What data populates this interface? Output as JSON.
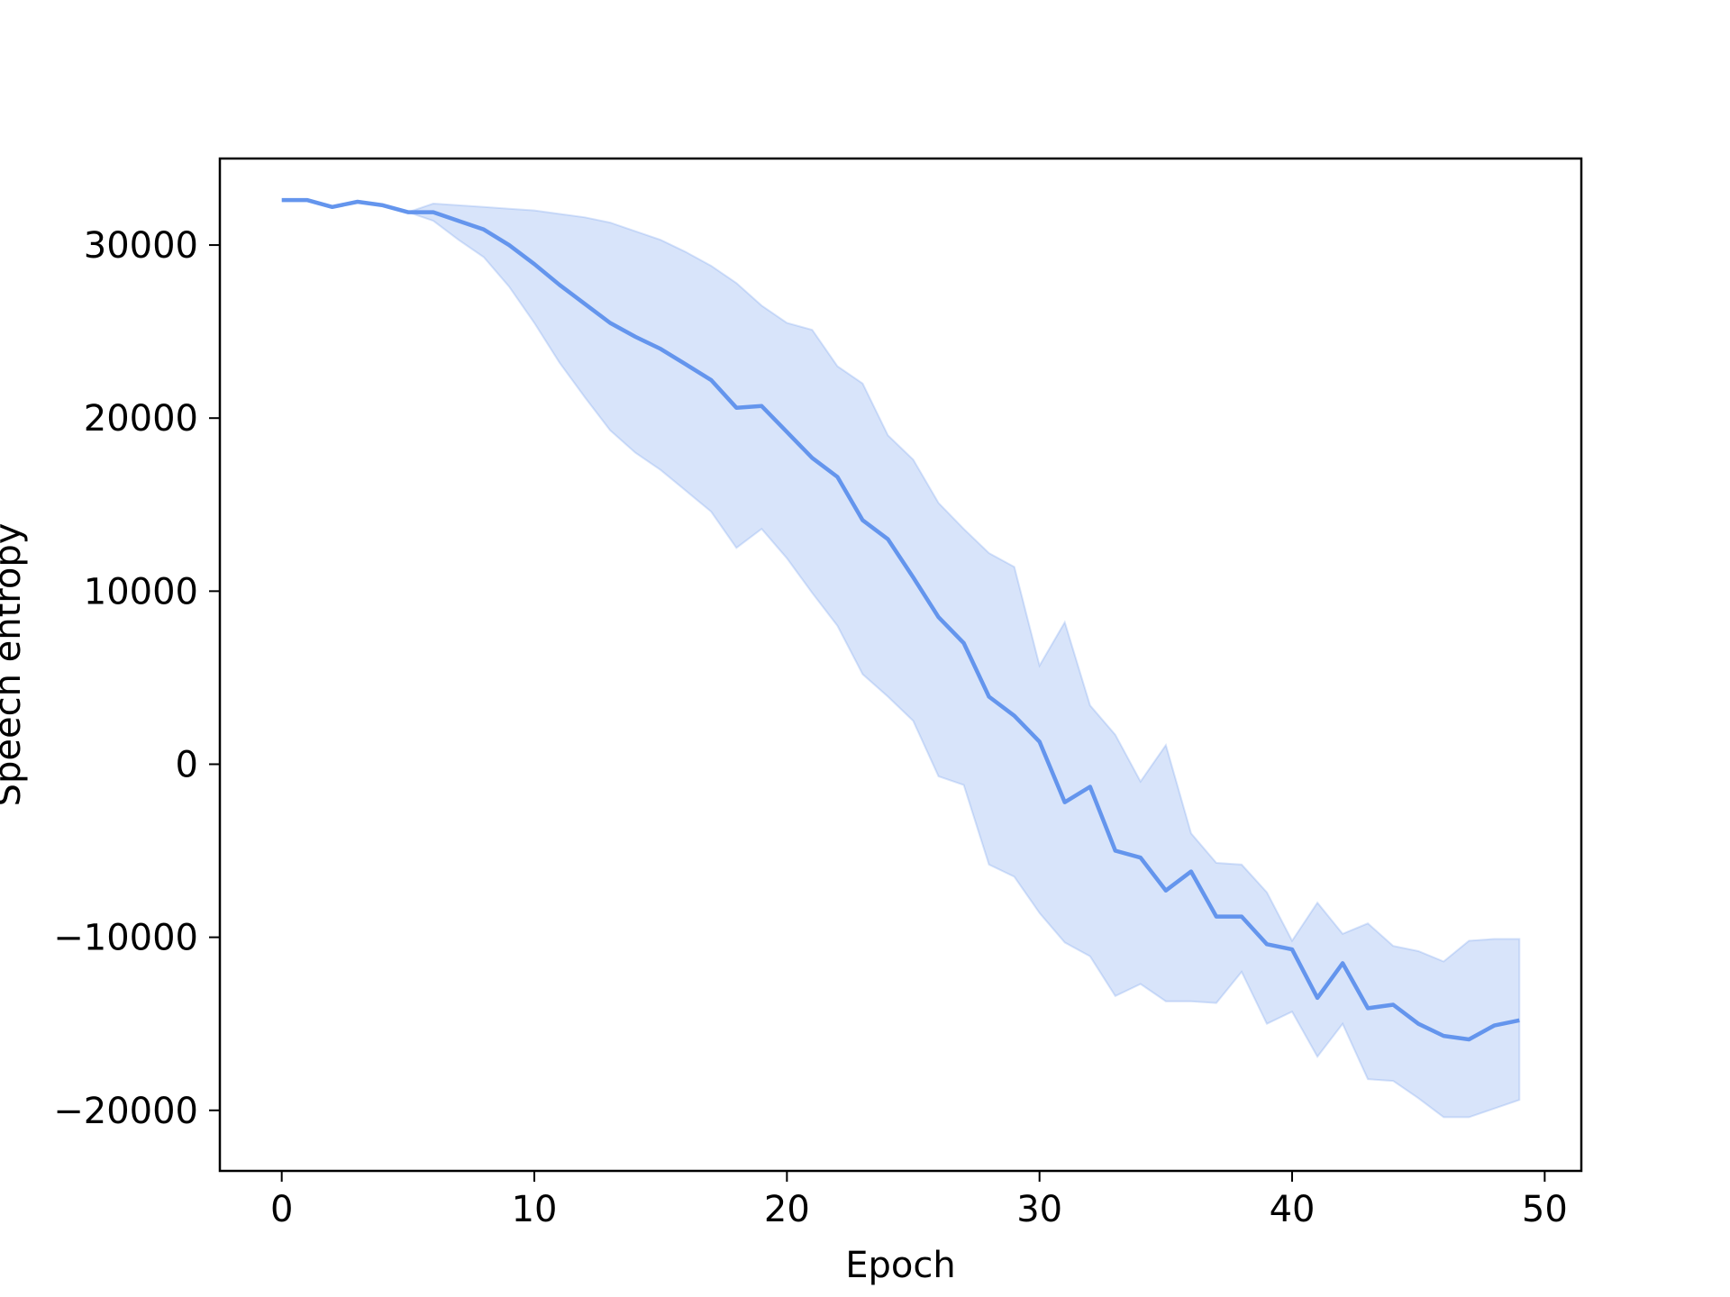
{
  "chart_data": {
    "type": "line",
    "title": "",
    "xlabel": "Epoch",
    "ylabel": "Speech entropy",
    "xlim": [
      -2.45,
      51.45
    ],
    "ylim": [
      -23500,
      35000
    ],
    "xticks": [
      0,
      10,
      20,
      30,
      40,
      50
    ],
    "yticks": [
      -20000,
      -10000,
      0,
      10000,
      20000,
      30000
    ],
    "xtick_labels": [
      "0",
      "10",
      "20",
      "30",
      "40",
      "50"
    ],
    "ytick_labels": [
      "−20000",
      "−10000",
      "0",
      "10000",
      "20000",
      "30000"
    ],
    "grid": false,
    "colors": {
      "line": "#6495ED",
      "band": "#6495ED"
    },
    "series": [
      {
        "x": [
          0,
          1,
          2,
          3,
          4,
          5,
          6,
          7,
          8,
          9,
          10,
          11,
          12,
          13,
          14,
          15,
          16,
          17,
          18,
          19,
          20,
          21,
          22,
          23,
          24,
          25,
          26,
          27,
          28,
          29,
          30,
          31,
          32,
          33,
          34,
          35,
          36,
          37,
          38,
          39,
          40,
          41,
          42,
          43,
          44,
          45,
          46,
          47,
          48,
          49
        ],
        "values": [
          32600,
          32600,
          32200,
          32500,
          32300,
          31900,
          31900,
          31400,
          30900,
          30000,
          28900,
          27700,
          26600,
          25500,
          24700,
          24000,
          23100,
          22200,
          20600,
          20700,
          19200,
          17700,
          16600,
          14100,
          13000,
          10800,
          8500,
          7000,
          3900,
          2800,
          1300,
          -2200,
          -1300,
          -5000,
          -5400,
          -7300,
          -6200,
          -8800,
          -8800,
          -10400,
          -10700,
          -13500,
          -11500,
          -14100,
          -13900,
          -15000,
          -15700,
          -15900,
          -15100,
          -14800
        ],
        "upper": [
          32600,
          32600,
          32200,
          32500,
          32300,
          31900,
          32400,
          32300,
          32200,
          32100,
          32000,
          31800,
          31600,
          31300,
          30800,
          30300,
          29600,
          28800,
          27800,
          26500,
          25500,
          25100,
          23000,
          22000,
          19000,
          17600,
          15100,
          13600,
          12200,
          11400,
          5700,
          8200,
          3400,
          1700,
          -1000,
          1100,
          -4000,
          -5700,
          -5800,
          -7400,
          -10200,
          -8000,
          -9800,
          -9200,
          -10500,
          -10800,
          -11400,
          -10200,
          -10100,
          -10100
        ],
        "lower": [
          32600,
          32600,
          32200,
          32500,
          32300,
          31900,
          31400,
          30300,
          29300,
          27600,
          25500,
          23200,
          21200,
          19300,
          18000,
          17000,
          15800,
          14600,
          12500,
          13600,
          11900,
          9900,
          8000,
          5200,
          3900,
          2500,
          -700,
          -1200,
          -5800,
          -6500,
          -8600,
          -10300,
          -11100,
          -13400,
          -12700,
          -13700,
          -13700,
          -13800,
          -12000,
          -15000,
          -14300,
          -16900,
          -15000,
          -18200,
          -18300,
          -19300,
          -20400,
          -20400,
          -19900,
          -19400
        ]
      }
    ]
  }
}
